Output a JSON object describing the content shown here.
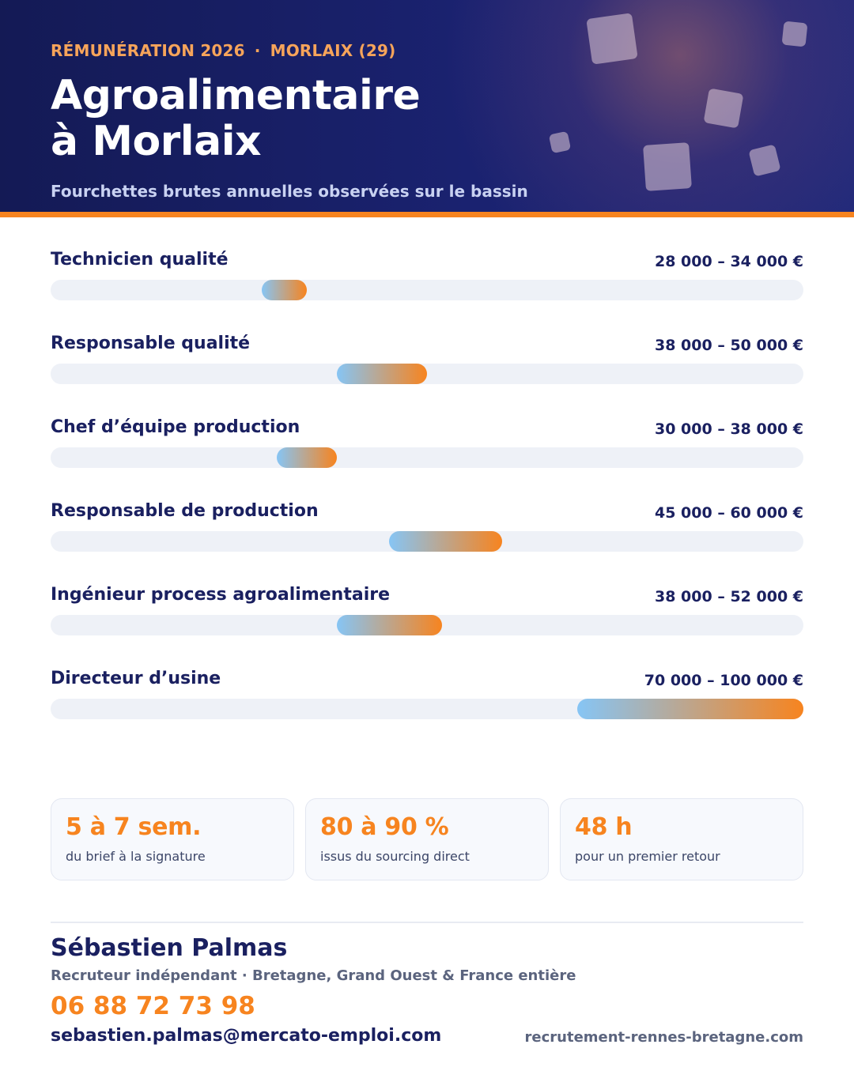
{
  "header": {
    "eyebrow_left": "RÉMUNÉRATION 2026",
    "eyebrow_sep": "·",
    "eyebrow_right": "MORLAIX (29)",
    "title_line1": "Agroalimentaire",
    "title_line2": "à Morlaix",
    "subtitle": "Fourchettes brutes annuelles observées sur le bassin"
  },
  "chart_data": {
    "type": "bar",
    "orientation": "horizontal-range",
    "unit": "€",
    "xlim": [
      0,
      100000
    ],
    "grid": false,
    "legend": "none",
    "categories": [
      "Technicien qualité",
      "Responsable qualité",
      "Chef d’équipe production",
      "Responsable de production",
      "Ingénieur process agroalimentaire",
      "Directeur d’usine"
    ],
    "ranges": [
      {
        "min": 28000,
        "max": 34000
      },
      {
        "min": 38000,
        "max": 50000
      },
      {
        "min": 30000,
        "max": 38000
      },
      {
        "min": 45000,
        "max": 60000
      },
      {
        "min": 38000,
        "max": 52000
      },
      {
        "min": 70000,
        "max": 100000
      }
    ],
    "labels": [
      "28 000 – 34 000 €",
      "38 000 – 50 000 €",
      "30 000 – 38 000 €",
      "45 000 – 60 000 €",
      "38 000 – 52 000 €",
      "70 000 – 100 000 €"
    ],
    "colors": {
      "gradient_start": "#86c5f5",
      "gradient_end": "#f7841f",
      "track": "#eef1f7"
    }
  },
  "stats": [
    {
      "value": "5 à 7 sem.",
      "desc": "du brief à la signature"
    },
    {
      "value": "80 à 90 %",
      "desc": "issus du sourcing direct"
    },
    {
      "value": "48 h",
      "desc": "pour un premier retour"
    }
  ],
  "contact": {
    "name": "Sébastien Palmas",
    "role": "Recruteur indépendant · Bretagne, Grand Ouest & France entière",
    "phone": "06 88 72 73 98",
    "email": "sebastien.palmas@mercato-emploi.com",
    "website": "recrutement-rennes-bretagne.com"
  },
  "colors": {
    "navy": "#1a2060",
    "accent": "#f7841f",
    "eyebrow": "#f6a45a"
  }
}
